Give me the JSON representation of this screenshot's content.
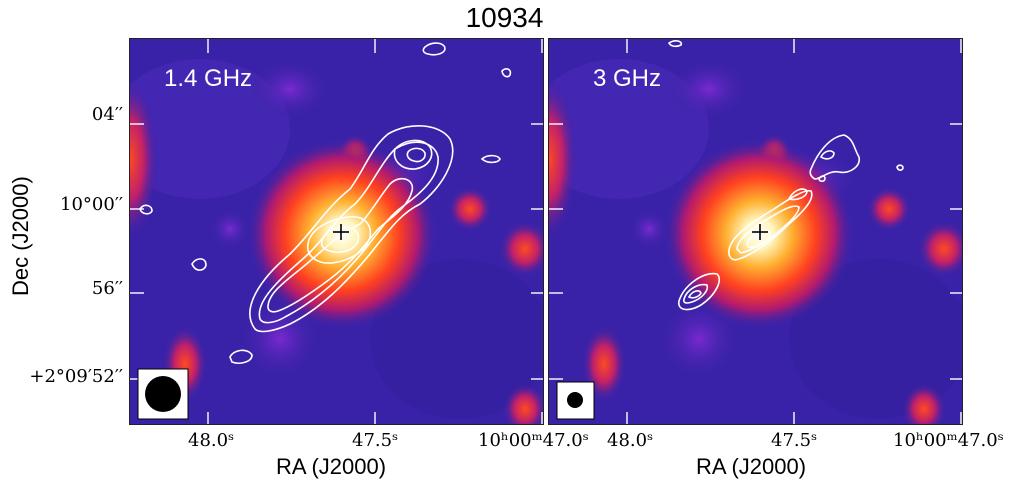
{
  "figure": {
    "title": "10934",
    "colors": {
      "background_map": "#3a22a8",
      "bright_core": "#fff6c8",
      "contour": "#ffffff"
    }
  },
  "panels": [
    {
      "band_label": "1.4 GHz",
      "beam": "filled-circle-large"
    },
    {
      "band_label": "3 GHz",
      "beam": "filled-circle-small"
    }
  ],
  "axes": {
    "ylabel": "Dec (J2000)",
    "xlabel": "RA (J2000)",
    "y_ticks": [
      "04′′",
      "10°00′′",
      "56′′",
      "+2°09′52′′"
    ],
    "x_ticks": [
      "48.0ˢ",
      "47.5ˢ",
      "10ʰ00ᵐ47.0ˢ"
    ]
  }
}
